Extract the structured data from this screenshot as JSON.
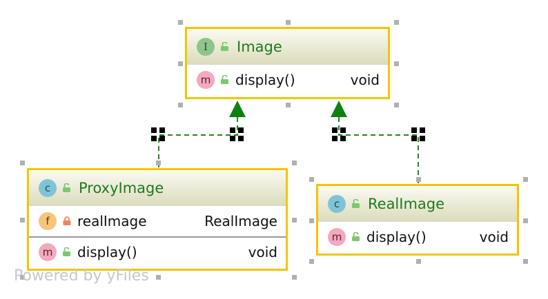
{
  "diagram": {
    "nodes": {
      "image": {
        "kind": "interface",
        "badge": "I",
        "name": "Image",
        "methods": [
          {
            "badge": "m",
            "name": "display()",
            "type": "void"
          }
        ]
      },
      "proxy": {
        "kind": "class",
        "badge": "c",
        "name": "ProxyImage",
        "fields": [
          {
            "badge": "f",
            "name": "realImage",
            "type": "RealImage"
          }
        ],
        "methods": [
          {
            "badge": "m",
            "name": "display()",
            "type": "void"
          }
        ]
      },
      "real": {
        "kind": "class",
        "badge": "c",
        "name": "RealImage",
        "methods": [
          {
            "badge": "m",
            "name": "display()",
            "type": "void"
          }
        ]
      }
    },
    "edges": [
      {
        "from": "proxy",
        "to": "image",
        "relation": "implements"
      },
      {
        "from": "real",
        "to": "image",
        "relation": "implements"
      }
    ],
    "colors": {
      "border": "#f5c400",
      "title": "#1e7a1e",
      "edge": "#1e8a1e",
      "arrow": "#108010"
    }
  },
  "watermark": "Powered by yFiles"
}
